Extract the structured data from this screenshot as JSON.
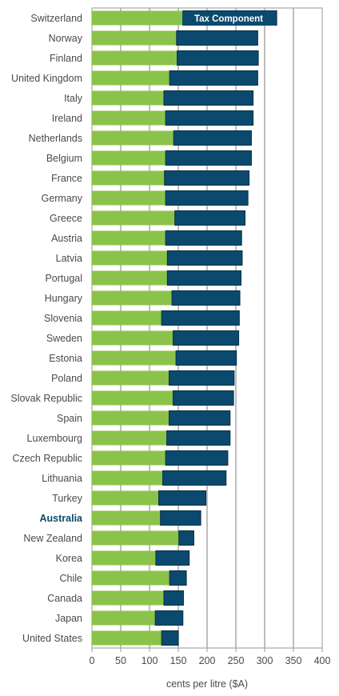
{
  "chart_data": {
    "type": "bar",
    "orientation": "horizontal",
    "stacked": true,
    "categories": [
      "Switzerland",
      "Norway",
      "Finland",
      "United Kingdom",
      "Italy",
      "Ireland",
      "Netherlands",
      "Belgium",
      "France",
      "Germany",
      "Greece",
      "Austria",
      "Latvia",
      "Portugal",
      "Hungary",
      "Slovenia",
      "Sweden",
      "Estonia",
      "Poland",
      "Slovak Republic",
      "Spain",
      "Luxembourg",
      "Czech Republic",
      "Lithuania",
      "Turkey",
      "Australia",
      "New Zealand",
      "Korea",
      "Chile",
      "Canada",
      "Japan",
      "United States"
    ],
    "highlight_category": "Australia",
    "series": [
      {
        "name": "",
        "color": "#8bc34a",
        "values": [
          158,
          147,
          148,
          135,
          125,
          128,
          142,
          128,
          126,
          128,
          144,
          128,
          131,
          131,
          139,
          121,
          141,
          146,
          134,
          141,
          134,
          130,
          128,
          123,
          116,
          119,
          151,
          111,
          135,
          125,
          110,
          121
        ]
      },
      {
        "name": "Tax Component",
        "color": "#0b4a6e",
        "values": [
          163,
          141,
          141,
          153,
          155,
          152,
          135,
          149,
          147,
          143,
          122,
          132,
          130,
          128,
          118,
          135,
          114,
          105,
          113,
          105,
          106,
          110,
          108,
          110,
          82,
          70,
          26,
          58,
          29,
          34,
          48,
          29
        ]
      }
    ],
    "xlabel": "cents per litre ($A)",
    "xlim": [
      0,
      400
    ],
    "xticks": [
      "0",
      "50",
      "100",
      "150",
      "200",
      "250",
      "300",
      "350",
      "400"
    ],
    "grid": true,
    "legend": {
      "position": "top-right",
      "label": "Tax Component"
    }
  }
}
